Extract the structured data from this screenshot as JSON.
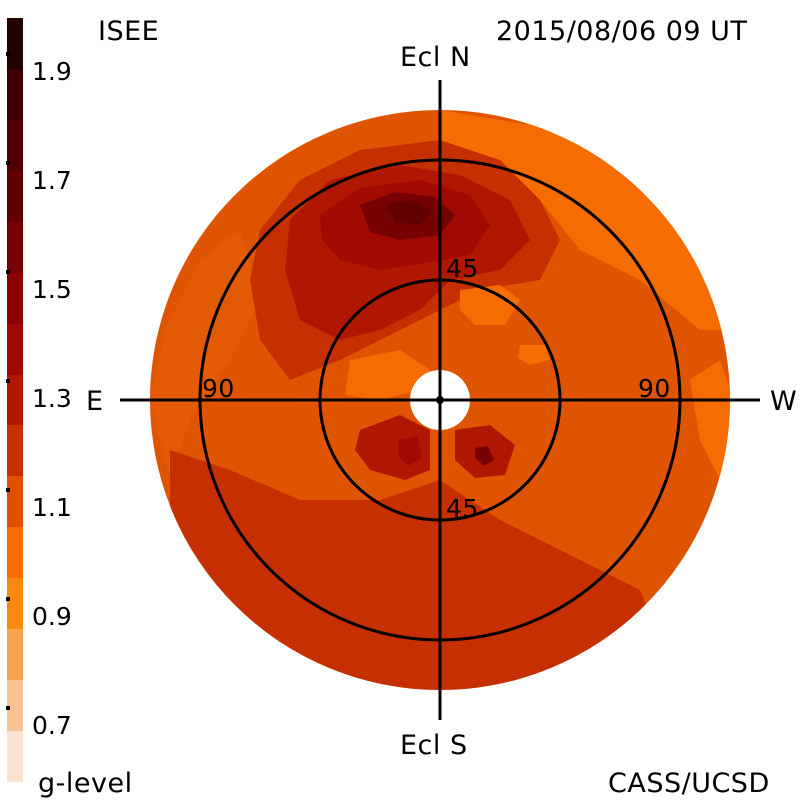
{
  "header": {
    "source": "ISEE",
    "datetime": "2015/08/06 09 UT"
  },
  "footer": {
    "colorbar_label": "g-level",
    "credit": "CASS/UCSD"
  },
  "colorbar": {
    "levels": [
      0.6,
      0.7,
      0.8,
      0.9,
      1.0,
      1.1,
      1.2,
      1.3,
      1.4,
      1.5,
      1.6,
      1.7,
      1.8,
      1.9,
      2.0
    ],
    "tick_labels": [
      "0.7",
      "0.9",
      "1.1",
      "1.3",
      "1.5",
      "1.7",
      "1.9"
    ],
    "colors": [
      "#fbe3cf",
      "#f8c190",
      "#f7a44e",
      "#f88a0d",
      "#f56c00",
      "#e24f00",
      "#c63000",
      "#b01700",
      "#a00a00",
      "#8d0000",
      "#770000",
      "#620000",
      "#4f0000",
      "#3c0000",
      "#250000"
    ]
  },
  "map": {
    "directions": {
      "north": "Ecl N",
      "south": "Ecl S",
      "east": "E",
      "west": "W"
    },
    "ring_labels": {
      "inner_top": "45",
      "inner_bottom": "45",
      "outer_left": "90",
      "outer_right": "90"
    },
    "rings_deg": [
      45,
      90
    ],
    "disk_color": "#df5400"
  }
}
